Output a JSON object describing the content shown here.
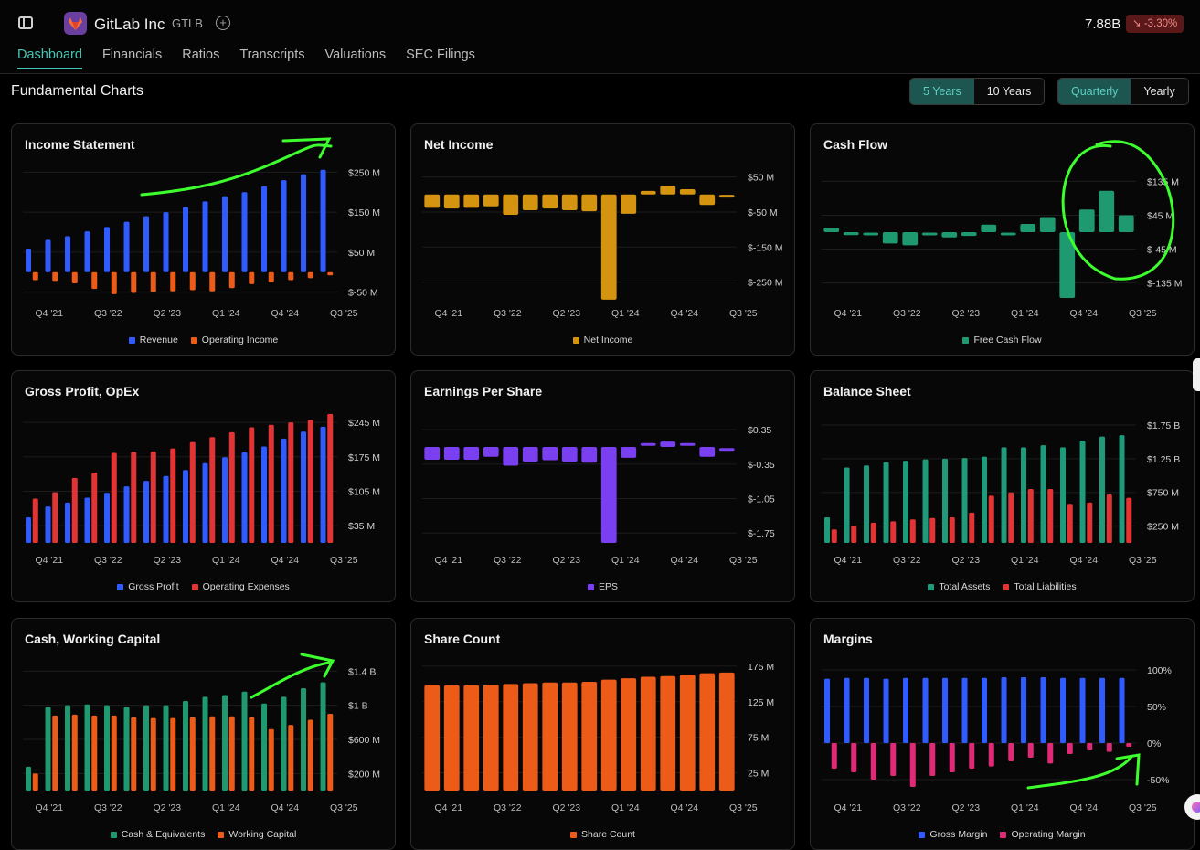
{
  "header": {
    "company": "GitLab Inc",
    "ticker": "GTLB",
    "market_cap": "7.88B",
    "change": "↘ -3.30%",
    "add_icon": "plus-circle-icon",
    "sidebar_icon": "sidebar-toggle-icon",
    "logo_icon": "gitlab-fox-icon"
  },
  "tabs": [
    {
      "label": "Dashboard",
      "active": true
    },
    {
      "label": "Financials"
    },
    {
      "label": "Ratios"
    },
    {
      "label": "Transcripts"
    },
    {
      "label": "Valuations"
    },
    {
      "label": "SEC Filings"
    }
  ],
  "section_title": "Fundamental Charts",
  "range_toggle": {
    "options": [
      "5 Years",
      "10 Years"
    ],
    "selected": "5 Years"
  },
  "period_toggle": {
    "options": [
      "Quarterly",
      "Yearly"
    ],
    "selected": "Quarterly"
  },
  "colors": {
    "accent": "#46c6b4",
    "blue": "#2f5bff",
    "orange": "#ec5b17",
    "gold": "#d4940f",
    "green": "#1f9a70",
    "purple": "#7b3ff2",
    "red": "#e23434",
    "teal": "#1f9a7a",
    "pink": "#e02a78",
    "annotation": "#3dff2e"
  },
  "x_tick_labels": [
    "Q4 '21",
    "Q3 '22",
    "Q2 '23",
    "Q1 '24",
    "Q4 '24",
    "Q3 '25"
  ],
  "chart_data": [
    {
      "id": "income",
      "title": "Income Statement",
      "type": "bar",
      "yticks": [
        {
          "v": 250,
          "l": "$250 M"
        },
        {
          "v": 150,
          "l": "$150 M"
        },
        {
          "v": 50,
          "l": "$50 M"
        },
        {
          "v": -50,
          "l": "$-50 M"
        }
      ],
      "ylim": [
        -60,
        260
      ],
      "series": [
        {
          "name": "Revenue",
          "color": "#2f5bff",
          "values": [
            59,
            81,
            90,
            102,
            113,
            126,
            140,
            150,
            163,
            177,
            190,
            200,
            215,
            230,
            245,
            256
          ]
        },
        {
          "name": "Operating Income",
          "color": "#ec5b17",
          "values": [
            -20,
            -22,
            -28,
            -42,
            -55,
            -52,
            -50,
            -48,
            -45,
            -48,
            -40,
            -30,
            -25,
            -20,
            -15,
            -8
          ]
        }
      ]
    },
    {
      "id": "netincome",
      "title": "Net Income",
      "type": "bar",
      "yticks": [
        {
          "v": 50,
          "l": "$50 M"
        },
        {
          "v": -50,
          "l": "$-50 M"
        },
        {
          "v": -150,
          "l": "$-150 M"
        },
        {
          "v": -250,
          "l": "$-250 M"
        }
      ],
      "ylim": [
        -290,
        75
      ],
      "series": [
        {
          "name": "Net Income",
          "color": "#d4940f",
          "values": [
            -38,
            -40,
            -38,
            -34,
            -58,
            -45,
            -40,
            -45,
            -48,
            -300,
            -55,
            10,
            25,
            15,
            -30,
            -5
          ]
        }
      ]
    },
    {
      "id": "cashflow",
      "title": "Cash Flow",
      "type": "bar",
      "yticks": [
        {
          "v": 135,
          "l": "$135 M"
        },
        {
          "v": 45,
          "l": "$45 M"
        },
        {
          "v": -45,
          "l": "$-45 M"
        },
        {
          "v": -135,
          "l": "$-135 M"
        }
      ],
      "ylim": [
        -170,
        170
      ],
      "series": [
        {
          "name": "Free Cash Flow",
          "color": "#1f9a70",
          "values": [
            12,
            -8,
            -5,
            -30,
            -35,
            -5,
            -14,
            -10,
            20,
            -5,
            22,
            40,
            -175,
            60,
            110,
            45
          ]
        }
      ]
    },
    {
      "id": "grossprofit",
      "title": "Gross Profit, OpEx",
      "type": "bar",
      "yticks": [
        {
          "v": 245,
          "l": "$245 M"
        },
        {
          "v": 175,
          "l": "$175 M"
        },
        {
          "v": 105,
          "l": "$105 M"
        },
        {
          "v": 35,
          "l": "$35 M"
        }
      ],
      "ylim": [
        0,
        260
      ],
      "series": [
        {
          "name": "Gross Profit",
          "color": "#2f5bff",
          "values": [
            52,
            74,
            82,
            92,
            102,
            115,
            126,
            136,
            148,
            162,
            174,
            184,
            196,
            212,
            226,
            236
          ]
        },
        {
          "name": "Operating Expenses",
          "color": "#e23434",
          "values": [
            90,
            103,
            132,
            143,
            183,
            185,
            186,
            192,
            205,
            215,
            225,
            235,
            240,
            245,
            250,
            262
          ]
        }
      ]
    },
    {
      "id": "eps",
      "title": "Earnings Per Share",
      "type": "bar",
      "yticks": [
        {
          "v": 0.35,
          "l": "$0.35"
        },
        {
          "v": -0.35,
          "l": "$-0.35"
        },
        {
          "v": -1.05,
          "l": "$-1.05"
        },
        {
          "v": -1.75,
          "l": "$-1.75"
        }
      ],
      "ylim": [
        -1.95,
        0.65
      ],
      "series": [
        {
          "name": "EPS",
          "color": "#7b3ff2",
          "values": [
            -0.26,
            -0.26,
            -0.26,
            -0.2,
            -0.38,
            -0.3,
            -0.27,
            -0.3,
            -0.32,
            -1.95,
            -0.22,
            0.05,
            0.11,
            0.05,
            -0.2,
            -0.05
          ]
        }
      ]
    },
    {
      "id": "balance",
      "title": "Balance Sheet",
      "type": "bar",
      "yticks": [
        {
          "v": 1.75,
          "l": "$1.75 B"
        },
        {
          "v": 1.25,
          "l": "$1.25 B"
        },
        {
          "v": 0.75,
          "l": "$750 M"
        },
        {
          "v": 0.25,
          "l": "$250 M"
        }
      ],
      "ylim": [
        0,
        1.9
      ],
      "series": [
        {
          "name": "Total Assets",
          "color": "#1f9a7a",
          "values": [
            0.38,
            1.12,
            1.15,
            1.2,
            1.22,
            1.24,
            1.25,
            1.26,
            1.28,
            1.42,
            1.42,
            1.45,
            1.42,
            1.52,
            1.58,
            1.6
          ]
        },
        {
          "name": "Total Liabilities",
          "color": "#e23434",
          "values": [
            0.2,
            0.25,
            0.3,
            0.32,
            0.35,
            0.37,
            0.38,
            0.45,
            0.7,
            0.75,
            0.8,
            0.8,
            0.58,
            0.6,
            0.72,
            0.67
          ]
        }
      ]
    },
    {
      "id": "cashwc",
      "title": "Cash, Working Capital",
      "type": "bar",
      "yticks": [
        {
          "v": 1.4,
          "l": "$1.4 B"
        },
        {
          "v": 1.0,
          "l": "$1 B"
        },
        {
          "v": 0.6,
          "l": "$600 M"
        },
        {
          "v": 0.2,
          "l": "$200 M"
        }
      ],
      "ylim": [
        0,
        1.5
      ],
      "series": [
        {
          "name": "Cash & Equivalents",
          "color": "#1f9a70",
          "values": [
            0.28,
            0.98,
            1.0,
            1.01,
            1.0,
            0.98,
            1.0,
            1.0,
            1.05,
            1.1,
            1.12,
            1.16,
            1.02,
            1.1,
            1.2,
            1.27
          ]
        },
        {
          "name": "Working Capital",
          "color": "#ec5b17",
          "values": [
            0.2,
            0.88,
            0.89,
            0.88,
            0.88,
            0.86,
            0.85,
            0.85,
            0.86,
            0.87,
            0.87,
            0.86,
            0.72,
            0.77,
            0.83,
            0.9
          ]
        }
      ]
    },
    {
      "id": "shares",
      "title": "Share Count",
      "type": "bar",
      "yticks": [
        {
          "v": 175,
          "l": "175 M"
        },
        {
          "v": 125,
          "l": "125 M"
        },
        {
          "v": 75,
          "l": "75 M"
        },
        {
          "v": 25,
          "l": "25 M"
        }
      ],
      "ylim": [
        0,
        180
      ],
      "series": [
        {
          "name": "Share Count",
          "color": "#ec5b17",
          "values": [
            148,
            148,
            148,
            149,
            150,
            151,
            152,
            152,
            153,
            156,
            158,
            160,
            161,
            163,
            165,
            166
          ]
        }
      ]
    },
    {
      "id": "margins",
      "title": "Margins",
      "type": "bar",
      "yticks": [
        {
          "v": 100,
          "l": "100%"
        },
        {
          "v": 50,
          "l": "50%"
        },
        {
          "v": 0,
          "l": "0%"
        },
        {
          "v": -50,
          "l": "-50%"
        }
      ],
      "ylim": [
        -65,
        110
      ],
      "series": [
        {
          "name": "Gross Margin",
          "color": "#2f5bff",
          "values": [
            88,
            89,
            89,
            88,
            89,
            89,
            89,
            89,
            89,
            90,
            90,
            90,
            89,
            89,
            89,
            89
          ]
        },
        {
          "name": "Operating Margin",
          "color": "#e02a78",
          "values": [
            -35,
            -40,
            -50,
            -45,
            -60,
            -45,
            -40,
            -35,
            -32,
            -25,
            -20,
            -28,
            -15,
            -10,
            -12,
            -5
          ]
        }
      ]
    }
  ]
}
